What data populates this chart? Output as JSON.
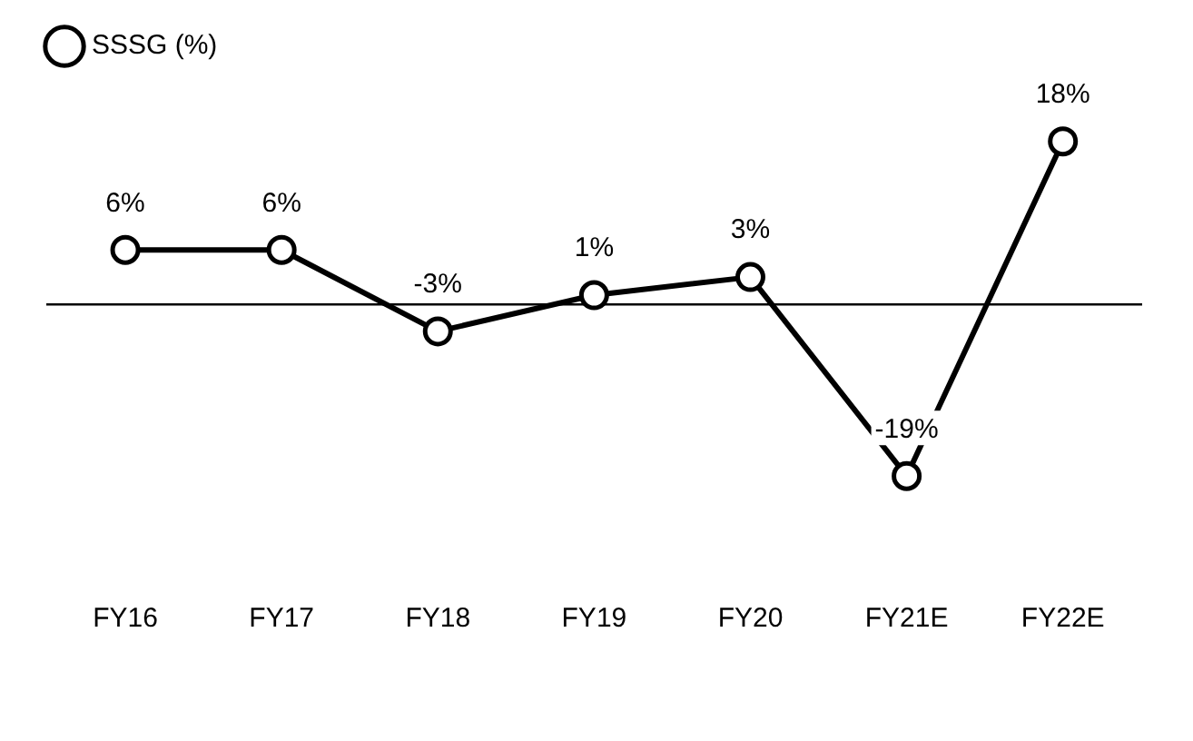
{
  "chart_data": {
    "type": "line",
    "categories": [
      "FY16",
      "FY17",
      "FY18",
      "FY19",
      "FY20",
      "FY21E",
      "FY22E"
    ],
    "series": [
      {
        "name": "SSSG (%)",
        "color": "#000000",
        "values": [
          6,
          6,
          -3,
          1,
          3,
          -19,
          18
        ],
        "value_labels": [
          "6%",
          "6%",
          "-3%",
          "1%",
          "3%",
          "-19%",
          "18%"
        ]
      }
    ],
    "legend": "top left",
    "marker": "circle",
    "line_style": "solid"
  }
}
